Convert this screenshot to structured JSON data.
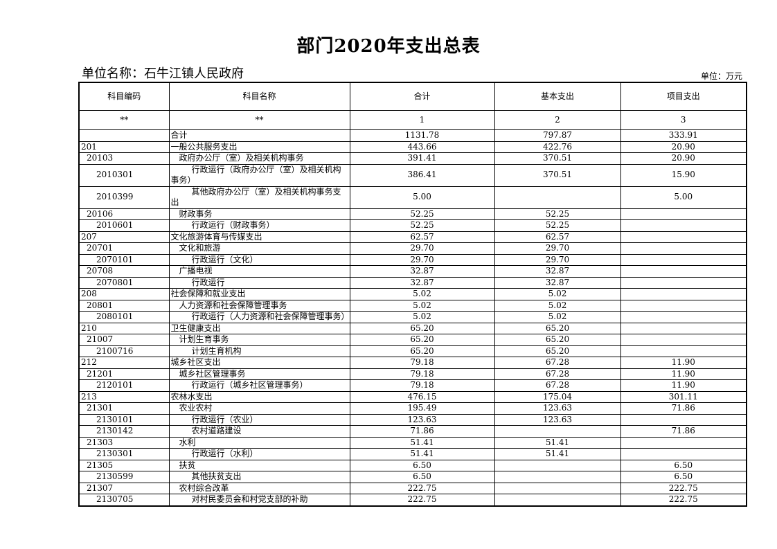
{
  "title": "部门2020年支出总表",
  "unit_name": "单位名称：石牛江镇人民政府",
  "unit": "单位：万元",
  "headers": [
    "科目编码",
    "科目名称",
    "合计",
    "基本支出",
    "项目支出"
  ],
  "index_row": [
    "**",
    "**",
    "1",
    "2",
    "3"
  ],
  "rows": [
    {
      "code": "",
      "name": "合计",
      "level": 1,
      "total": "1131.78",
      "basic": "797.87",
      "project": "333.91"
    },
    {
      "code": "201",
      "name": "一般公共服务支出",
      "level": 1,
      "total": "443.66",
      "basic": "422.76",
      "project": "20.90"
    },
    {
      "code": "20103",
      "name": "政府办公厅（室）及相关机构事务",
      "level": 2,
      "total": "391.41",
      "basic": "370.51",
      "project": "20.90"
    },
    {
      "code": "2010301",
      "name": "行政运行（政府办公厅（室）及相关机构事务）",
      "level": 3,
      "total": "386.41",
      "basic": "370.51",
      "project": "15.90"
    },
    {
      "code": "2010399",
      "name": "其他政府办公厅（室）及相关机构事务支出",
      "level": 3,
      "total": "5.00",
      "basic": "",
      "project": "5.00"
    },
    {
      "code": "20106",
      "name": "财政事务",
      "level": 2,
      "total": "52.25",
      "basic": "52.25",
      "project": ""
    },
    {
      "code": "2010601",
      "name": "行政运行（财政事务）",
      "level": 3,
      "total": "52.25",
      "basic": "52.25",
      "project": ""
    },
    {
      "code": "207",
      "name": "文化旅游体育与传媒支出",
      "level": 1,
      "total": "62.57",
      "basic": "62.57",
      "project": ""
    },
    {
      "code": "20701",
      "name": "文化和旅游",
      "level": 2,
      "total": "29.70",
      "basic": "29.70",
      "project": ""
    },
    {
      "code": "2070101",
      "name": "行政运行（文化）",
      "level": 3,
      "total": "29.70",
      "basic": "29.70",
      "project": ""
    },
    {
      "code": "20708",
      "name": "广播电视",
      "level": 2,
      "total": "32.87",
      "basic": "32.87",
      "project": ""
    },
    {
      "code": "2070801",
      "name": "行政运行",
      "level": 3,
      "total": "32.87",
      "basic": "32.87",
      "project": ""
    },
    {
      "code": "208",
      "name": "社会保障和就业支出",
      "level": 1,
      "total": "5.02",
      "basic": "5.02",
      "project": ""
    },
    {
      "code": "20801",
      "name": "人力资源和社会保障管理事务",
      "level": 2,
      "total": "5.02",
      "basic": "5.02",
      "project": ""
    },
    {
      "code": "2080101",
      "name": "行政运行（人力资源和社会保障管理事务）",
      "level": 3,
      "total": "5.02",
      "basic": "5.02",
      "project": ""
    },
    {
      "code": "210",
      "name": "卫生健康支出",
      "level": 1,
      "total": "65.20",
      "basic": "65.20",
      "project": ""
    },
    {
      "code": "21007",
      "name": "计划生育事务",
      "level": 2,
      "total": "65.20",
      "basic": "65.20",
      "project": ""
    },
    {
      "code": "2100716",
      "name": "计划生育机构",
      "level": 3,
      "total": "65.20",
      "basic": "65.20",
      "project": ""
    },
    {
      "code": "212",
      "name": "城乡社区支出",
      "level": 1,
      "total": "79.18",
      "basic": "67.28",
      "project": "11.90"
    },
    {
      "code": "21201",
      "name": "城乡社区管理事务",
      "level": 2,
      "total": "79.18",
      "basic": "67.28",
      "project": "11.90"
    },
    {
      "code": "2120101",
      "name": "行政运行（城乡社区管理事务）",
      "level": 3,
      "total": "79.18",
      "basic": "67.28",
      "project": "11.90"
    },
    {
      "code": "213",
      "name": "农林水支出",
      "level": 1,
      "total": "476.15",
      "basic": "175.04",
      "project": "301.11"
    },
    {
      "code": "21301",
      "name": "农业农村",
      "level": 2,
      "total": "195.49",
      "basic": "123.63",
      "project": "71.86"
    },
    {
      "code": "2130101",
      "name": "行政运行（农业）",
      "level": 3,
      "total": "123.63",
      "basic": "123.63",
      "project": ""
    },
    {
      "code": "2130142",
      "name": "农村道路建设",
      "level": 3,
      "total": "71.86",
      "basic": "",
      "project": "71.86"
    },
    {
      "code": "21303",
      "name": "水利",
      "level": 2,
      "total": "51.41",
      "basic": "51.41",
      "project": ""
    },
    {
      "code": "2130301",
      "name": "行政运行（水利）",
      "level": 3,
      "total": "51.41",
      "basic": "51.41",
      "project": ""
    },
    {
      "code": "21305",
      "name": "扶贫",
      "level": 2,
      "total": "6.50",
      "basic": "",
      "project": "6.50"
    },
    {
      "code": "2130599",
      "name": "其他扶贫支出",
      "level": 3,
      "total": "6.50",
      "basic": "",
      "project": "6.50"
    },
    {
      "code": "21307",
      "name": "农村综合改革",
      "level": 2,
      "total": "222.75",
      "basic": "",
      "project": "222.75"
    },
    {
      "code": "2130705",
      "name": "对村民委员会和村党支部的补助",
      "level": 3,
      "total": "222.75",
      "basic": "",
      "project": "222.75"
    }
  ]
}
